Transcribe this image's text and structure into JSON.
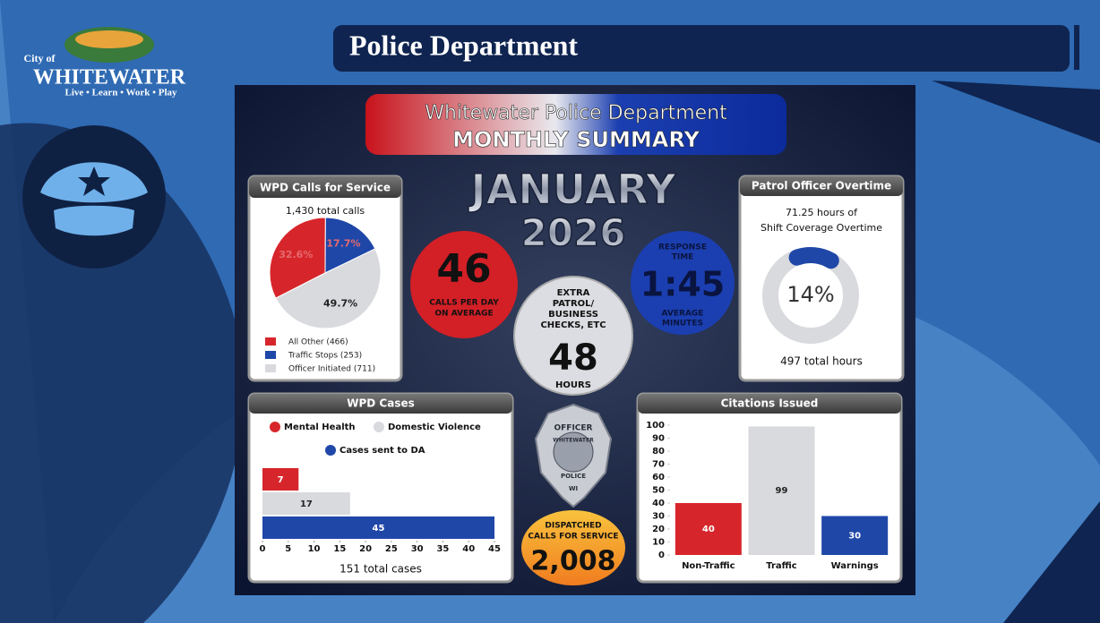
{
  "header": {
    "title": "Police Department",
    "logo": {
      "city_of": "City of",
      "name": "WHITEWATER",
      "tagline": "Live • Learn • Work • Play"
    }
  },
  "summary": {
    "banner_top": "Whitewater Police Department",
    "banner_bottom": "MONTHLY SUMMARY",
    "month": "JANUARY",
    "year": "2026"
  },
  "stats": {
    "calls_per_day": {
      "value": "46",
      "label": [
        "CALLS PER DAY",
        "ON AVERAGE"
      ]
    },
    "extra_patrol": {
      "label": [
        "EXTRA",
        "PATROL/",
        "BUSINESS",
        "CHECKS, ETC"
      ],
      "value": "48",
      "unit": "HOURS"
    },
    "response_time": {
      "label": [
        "RESPONSE",
        "TIME"
      ],
      "value": "1:45",
      "unit": [
        "AVERAGE",
        "MINUTES"
      ]
    },
    "dispatched": {
      "label": [
        "DISPATCHED",
        "CALLS FOR SERVICE"
      ],
      "value": "2,008"
    }
  },
  "badge": {
    "top": "OFFICER",
    "city": "WHITEWATER",
    "bottom": "POLICE",
    "state": "WI"
  },
  "chart_data": [
    {
      "type": "pie",
      "title": "WPD Calls for Service",
      "subtitle": "1,430 total calls",
      "series": [
        {
          "name": "All Other (466)",
          "color": "#d7262b",
          "values": [
            32.6
          ],
          "value_labels": [
            "32.6%"
          ]
        },
        {
          "name": "Traffic Stops (253)",
          "color": "#1f47a8",
          "values": [
            17.7
          ],
          "value_labels": [
            "17.7%"
          ]
        },
        {
          "name": "Officer Initiated (711)",
          "color": "#d9dade",
          "values": [
            49.7
          ],
          "value_labels": [
            "49.7%"
          ]
        }
      ]
    },
    {
      "type": "donut",
      "title": "Patrol Officer Overtime",
      "subtitle": [
        "71.25 hours of",
        "Shift Coverage Overtime"
      ],
      "values": [
        14
      ],
      "value_labels": [
        "14%"
      ],
      "color": "#1f47a8",
      "note": "497 total hours"
    },
    {
      "type": "hbar",
      "title": "WPD Cases",
      "note": "151 total cases",
      "series": [
        {
          "name": "Mental Health",
          "color": "#d7262b",
          "values": [
            7
          ]
        },
        {
          "name": "Domestic Violence",
          "color": "#d9dade",
          "values": [
            17
          ]
        },
        {
          "name": "Cases sent to DA",
          "color": "#1f47a8",
          "values": [
            45
          ]
        }
      ],
      "xlim": [
        0,
        45
      ],
      "xticks": [
        0,
        5,
        10,
        15,
        20,
        25,
        30,
        35,
        40,
        45
      ]
    },
    {
      "type": "bar",
      "title": "Citations Issued",
      "categories": [
        "Non-Traffic",
        "Traffic",
        "Warnings"
      ],
      "values": [
        40,
        99,
        30
      ],
      "colors": [
        "#d7262b",
        "#d9dade",
        "#1f47a8"
      ],
      "ylim": [
        0,
        100
      ],
      "yticks": [
        0,
        10,
        20,
        30,
        40,
        50,
        60,
        70,
        80,
        90,
        100
      ]
    }
  ]
}
